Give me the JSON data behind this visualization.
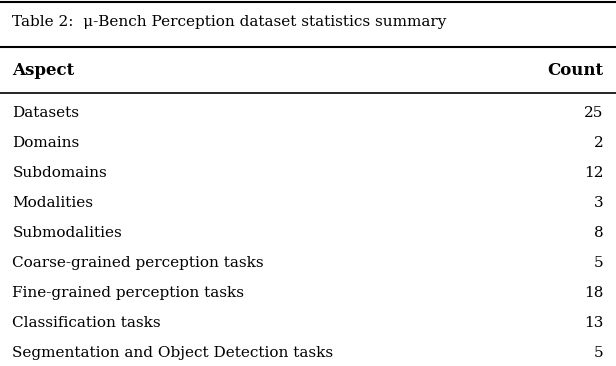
{
  "title": "Table 2:  μ-Bench Perception dataset statistics summary",
  "col_headers": [
    "Aspect",
    "Count"
  ],
  "rows": [
    [
      "Datasets",
      "25"
    ],
    [
      "Domains",
      "2"
    ],
    [
      "Subdomains",
      "12"
    ],
    [
      "Modalities",
      "3"
    ],
    [
      "Submodalities",
      "8"
    ],
    [
      "Coarse-grained perception tasks",
      "5"
    ],
    [
      "Fine-grained perception tasks",
      "18"
    ],
    [
      "Classification tasks",
      "13"
    ],
    [
      "Segmentation and Object Detection tasks",
      "5"
    ]
  ],
  "bg_color": "#ffffff",
  "text_color": "#000000",
  "header_fontsize": 12,
  "body_fontsize": 11,
  "title_fontsize": 11
}
